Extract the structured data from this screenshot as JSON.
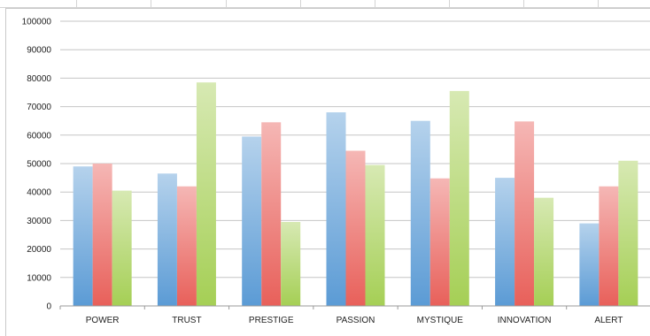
{
  "chart_data": {
    "type": "bar",
    "title": "",
    "xlabel": "",
    "ylabel": "",
    "ylim": [
      0,
      100000
    ],
    "yticks": [
      0,
      10000,
      20000,
      30000,
      40000,
      50000,
      60000,
      70000,
      80000,
      90000,
      100000
    ],
    "grid": true,
    "legend": "none",
    "categories": [
      "POWER",
      "TRUST",
      "PRESTIGE",
      "PASSION",
      "MYSTIQUE",
      "INNOVATION",
      "ALERT"
    ],
    "series": [
      {
        "color": "#5b9bd5",
        "values": [
          49000,
          46500,
          59500,
          68000,
          65000,
          45000,
          29000
        ]
      },
      {
        "color": "#e8605a",
        "values": [
          50000,
          42000,
          64500,
          54500,
          44800,
          64800,
          42000
        ]
      },
      {
        "color": "#a5cf55",
        "values": [
          40500,
          78500,
          29500,
          49500,
          75500,
          38000,
          51000
        ]
      }
    ]
  }
}
